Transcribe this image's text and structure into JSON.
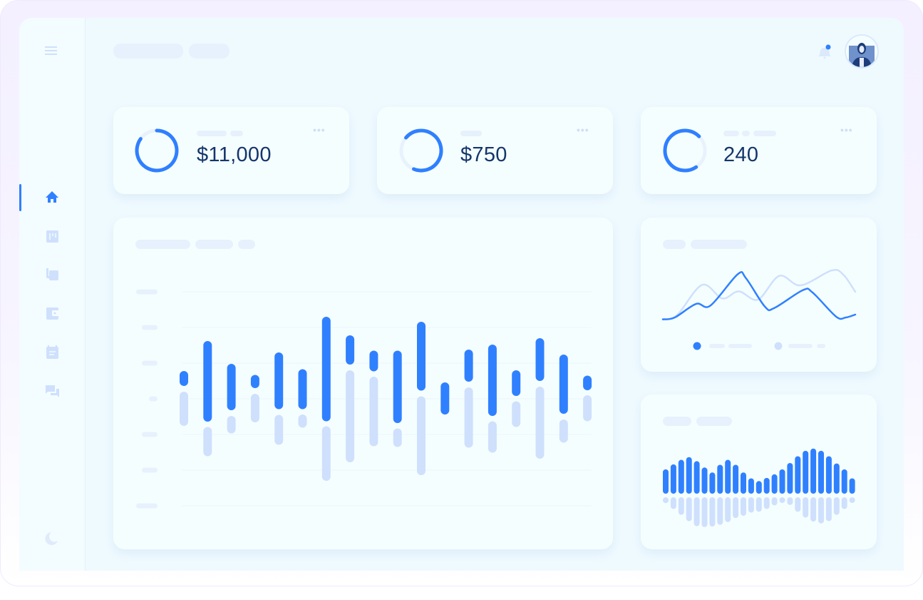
{
  "colors": {
    "accent": "#2f80ff",
    "accent_light": "#cfe0fd",
    "placeholder": "#e6f1fd",
    "text": "#14366b"
  },
  "header": {
    "notification_icon": "bell-icon",
    "has_unread_notification": true,
    "avatar": "user-avatar"
  },
  "sidebar": {
    "menu_icon": "hamburger-menu-icon",
    "items": [
      {
        "icon": "home-icon",
        "active": true
      },
      {
        "icon": "board-icon",
        "active": false
      },
      {
        "icon": "calculator-icon",
        "active": false
      },
      {
        "icon": "wallet-icon",
        "active": false
      },
      {
        "icon": "calendar-icon",
        "active": false
      },
      {
        "icon": "chat-icon",
        "active": false
      }
    ],
    "bottom_icon": "dark-mode-moon-icon"
  },
  "kpis": [
    {
      "value": "$11,000",
      "progress": 0.85,
      "menu_icon": "more-dots-icon"
    },
    {
      "value": "$750",
      "progress": 0.7,
      "menu_icon": "more-dots-icon"
    },
    {
      "value": "240",
      "progress": 0.72,
      "menu_icon": "more-dots-icon"
    }
  ],
  "chart_data": [
    {
      "type": "bar",
      "subtype": "floating-range",
      "grid": true,
      "ylim": [
        0,
        6
      ],
      "series": [
        {
          "color": "#2f80ff",
          "ranges": [
            [
              3.36,
              3.78
            ],
            [
              2.36,
              4.62
            ],
            [
              2.68,
              3.98
            ],
            [
              3.3,
              3.67
            ],
            [
              2.71,
              4.3
            ],
            [
              2.71,
              3.83
            ],
            [
              2.37,
              5.3
            ],
            [
              3.96,
              4.78
            ],
            [
              3.77,
              4.35
            ],
            [
              2.32,
              4.35
            ],
            [
              3.23,
              5.16
            ],
            [
              2.56,
              3.46
            ],
            [
              3.48,
              4.38
            ],
            [
              2.52,
              4.52
            ],
            [
              3.08,
              3.8
            ],
            [
              3.5,
              4.7
            ],
            [
              2.58,
              4.24
            ],
            [
              3.24,
              3.65
            ]
          ]
        },
        {
          "color": "#cfe0fd",
          "ranges": [
            [
              2.24,
              3.2
            ],
            [
              1.39,
              2.21
            ],
            [
              2.03,
              2.52
            ],
            [
              2.34,
              3.14
            ],
            [
              1.71,
              2.55
            ],
            [
              2.19,
              2.56
            ],
            [
              0.7,
              2.23
            ],
            [
              1.22,
              3.8
            ],
            [
              1.67,
              3.62
            ],
            [
              1.65,
              2.17
            ],
            [
              0.86,
              3.07
            ],
            null,
            [
              1.63,
              3.32
            ],
            [
              1.49,
              2.37
            ],
            [
              2.21,
              2.93
            ],
            [
              1.32,
              3.34
            ],
            [
              1.77,
              2.42
            ],
            [
              2.37,
              3.1
            ]
          ]
        }
      ]
    },
    {
      "type": "line",
      "xlim": [
        0,
        100
      ],
      "ylim": [
        0,
        100
      ],
      "legend": "bottom",
      "series": [
        {
          "color": "#2f80ff",
          "points": [
            [
              0,
              7.4
            ],
            [
              6.2,
              10.9
            ],
            [
              17.3,
              35.7
            ],
            [
              24.7,
              32.6
            ],
            [
              38.9,
              90
            ],
            [
              43.2,
              82.6
            ],
            [
              53.1,
              30.4
            ],
            [
              58,
              28.3
            ],
            [
              72.8,
              60.9
            ],
            [
              77.8,
              56.5
            ],
            [
              90.1,
              12.2
            ],
            [
              95.1,
              10.9
            ],
            [
              100,
              16.1
            ]
          ]
        },
        {
          "color": "#cfe0fd",
          "points": [
            [
              0,
              7.4
            ],
            [
              7.4,
              15.2
            ],
            [
              20.4,
              70.4
            ],
            [
              30.9,
              45.7
            ],
            [
              39.5,
              58.7
            ],
            [
              49.4,
              43.5
            ],
            [
              60.5,
              87
            ],
            [
              71.6,
              69.6
            ],
            [
              87.7,
              96.9
            ],
            [
              93.8,
              89.1
            ],
            [
              100,
              57.8
            ]
          ]
        }
      ]
    },
    {
      "type": "bar",
      "subtype": "mirrored",
      "ylim": [
        0,
        100
      ],
      "series": [
        {
          "color": "#2f80ff",
          "values": [
            54,
            65,
            75,
            81,
            72,
            58,
            47,
            64,
            75,
            64,
            47,
            34,
            28,
            35,
            43,
            54,
            68,
            83,
            95,
            100,
            95,
            83,
            67,
            54,
            34
          ]
        },
        {
          "color": "#cfe0fd",
          "values": [
            13,
            26,
            39,
            53,
            64,
            66,
            65,
            61,
            55,
            46,
            41,
            34,
            32,
            26,
            18,
            11,
            17,
            32,
            45,
            54,
            58,
            53,
            39,
            26,
            12
          ]
        }
      ]
    }
  ]
}
